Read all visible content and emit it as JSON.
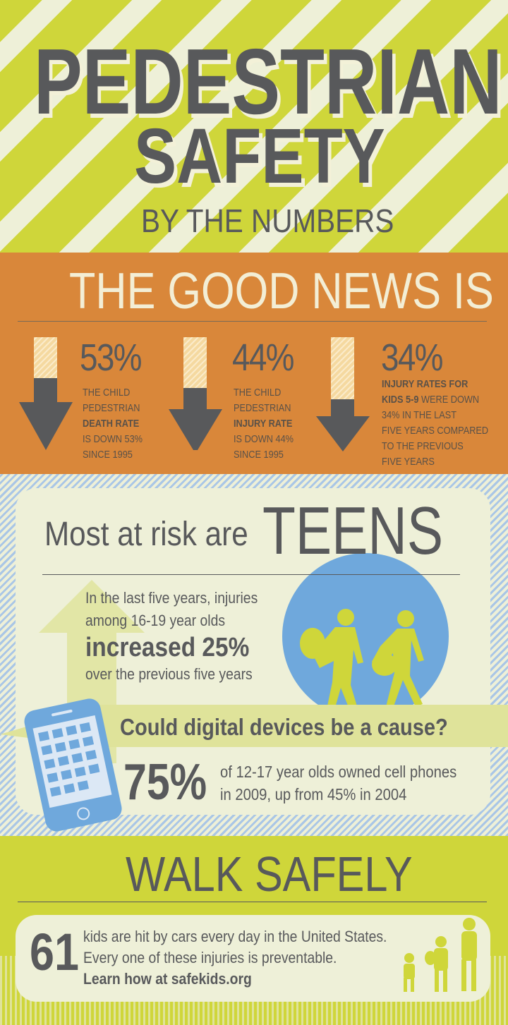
{
  "header": {
    "title_line1": "PEDESTRIAN",
    "title_line2": "SAFETY",
    "subtitle": "BY THE NUMBERS"
  },
  "good_news": {
    "heading": "THE GOOD NEWS IS",
    "stats": [
      {
        "value": "53%",
        "line1": "THE CHILD",
        "line2": "PEDESTRIAN",
        "bold": "DEATH RATE",
        "line3": "IS DOWN 53%",
        "line4": "SINCE 1995",
        "fill_fraction": 0.47
      },
      {
        "value": "44%",
        "line1": "THE CHILD",
        "line2": "PEDESTRIAN",
        "bold": "INJURY RATE",
        "line3": "IS DOWN 44%",
        "line4": "SINCE 1995",
        "fill_fraction": 0.56
      },
      {
        "value": "34%",
        "bold1": "INJURY RATES FOR",
        "bold2": "KIDS 5-9",
        "rest2": " WERE DOWN",
        "line3": "34% IN THE LAST",
        "line4": "FIVE YEARS COMPARED",
        "line5": "TO THE PREVIOUS",
        "line6": "FIVE YEARS",
        "fill_fraction": 0.66
      }
    ]
  },
  "teens": {
    "lead": "Most at risk are",
    "emphasis": "TEENS",
    "line1": "In the last five years, injuries",
    "line2": "among 16-19 year olds",
    "bold": "increased 25%",
    "line3": "over the previous five years",
    "question": "Could digital devices be a cause?",
    "stat": "75%",
    "stat_line1": "of 12-17 year olds owned cell phones",
    "stat_line2": "in 2009, up from 45% in 2004"
  },
  "walk": {
    "heading": "WALK SAFELY",
    "number": "61",
    "line1": "kids are hit by cars every day in the United States.",
    "line2": "Every one of these injuries is preventable.",
    "cta": "Learn how at safekids.org"
  },
  "colors": {
    "green": "#cfd63a",
    "orange": "#d9873a",
    "blue": "#6fa8dc",
    "gray": "#58595b",
    "cream": "#eef0d8"
  }
}
